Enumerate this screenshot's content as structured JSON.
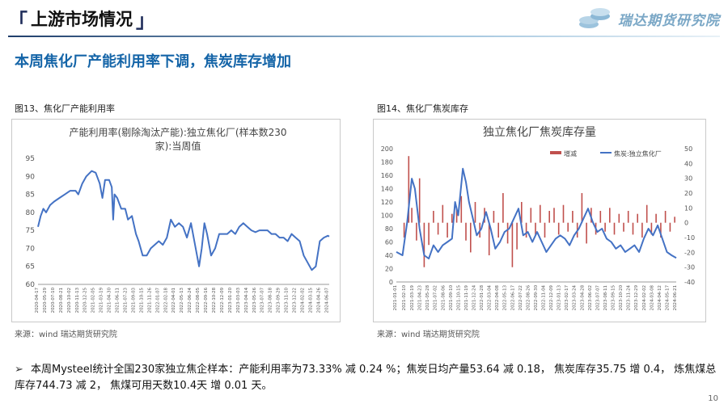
{
  "header": {
    "section_title": "上游市场情况",
    "logo_text": "瑞达期货研究院",
    "subtitle": "本周焦化厂产能利用率下调，焦炭库存增加"
  },
  "figures": [
    {
      "caption": "图13、焦化厂产能利用率",
      "source": "来源：wind   瑞达期货研究院"
    },
    {
      "caption": "图14、焦化厂焦炭库存",
      "source": "来源：wind   瑞达期货研究院"
    }
  ],
  "chart_data": [
    {
      "type": "line",
      "title": "产能利用率(剔除淘汰产能):独立焦化厂(样本数230家):当周值",
      "title_lines": [
        "产能利用率(剔除淘汰产能):独立焦化厂(样本数230",
        "家):当周值"
      ],
      "ylim": [
        60,
        95
      ],
      "yticks": [
        60,
        65,
        70,
        75,
        80,
        85,
        90,
        95
      ],
      "x_labels": [
        "2020-04-17",
        "2020-05-29",
        "2020-07-10",
        "2020-08-21",
        "2020-10-02",
        "2020-11-13",
        "2020-12-25",
        "2021-02-05",
        "2021-03-19",
        "2021-04-30",
        "2021-06-11",
        "2021-07-23",
        "2021-09-03",
        "2021-10-15",
        "2021-11-26",
        "2022-01-07",
        "2022-02-18",
        "2022-04-01",
        "2022-05-13",
        "2022-06-24",
        "2022-08-05",
        "2022-09-16",
        "2022-10-28",
        "2022-12-09",
        "2023-01-20",
        "2023-03-03",
        "2023-04-14",
        "2023-05-26",
        "2023-07-07",
        "2023-08-18",
        "2023-09-29",
        "2023-11-10",
        "2023-12-22",
        "2024-02-02",
        "2024-03-15",
        "2024-04-26",
        "2024-06-07"
      ],
      "x_start": "2020-04-17",
      "x_end": "2024-06-14",
      "series": [
        {
          "name": "",
          "color": "#4472c4",
          "points": [
            [
              "2020-04-17",
              76
            ],
            [
              "2020-05-01",
              79
            ],
            [
              "2020-05-15",
              81
            ],
            [
              "2020-05-29",
              80
            ],
            [
              "2020-06-19",
              82
            ],
            [
              "2020-07-10",
              83
            ],
            [
              "2020-08-07",
              84
            ],
            [
              "2020-09-04",
              85
            ],
            [
              "2020-10-02",
              86
            ],
            [
              "2020-10-30",
              86
            ],
            [
              "2020-11-13",
              85
            ],
            [
              "2020-12-04",
              88
            ],
            [
              "2020-12-25",
              90
            ],
            [
              "2021-01-22",
              91.5
            ],
            [
              "2021-02-12",
              91
            ],
            [
              "2021-03-05",
              88
            ],
            [
              "2021-03-19",
              84
            ],
            [
              "2021-04-02",
              89
            ],
            [
              "2021-04-23",
              89
            ],
            [
              "2021-05-07",
              87
            ],
            [
              "2021-05-14",
              78
            ],
            [
              "2021-05-21",
              85
            ],
            [
              "2021-06-04",
              84
            ],
            [
              "2021-06-25",
              81
            ],
            [
              "2021-07-16",
              81
            ],
            [
              "2021-07-30",
              78
            ],
            [
              "2021-08-20",
              79
            ],
            [
              "2021-09-10",
              74
            ],
            [
              "2021-09-24",
              72
            ],
            [
              "2021-10-15",
              68
            ],
            [
              "2021-11-05",
              68
            ],
            [
              "2021-11-26",
              70
            ],
            [
              "2021-12-17",
              71
            ],
            [
              "2022-01-07",
              72
            ],
            [
              "2022-01-28",
              71
            ],
            [
              "2022-02-18",
              73
            ],
            [
              "2022-03-11",
              78
            ],
            [
              "2022-04-01",
              76
            ],
            [
              "2022-04-22",
              77
            ],
            [
              "2022-05-13",
              76
            ],
            [
              "2022-06-03",
              73
            ],
            [
              "2022-06-24",
              77
            ],
            [
              "2022-07-15",
              71
            ],
            [
              "2022-08-05",
              65
            ],
            [
              "2022-08-19",
              70
            ],
            [
              "2022-09-02",
              77
            ],
            [
              "2022-09-16",
              74
            ],
            [
              "2022-10-07",
              68
            ],
            [
              "2022-10-28",
              70
            ],
            [
              "2022-11-18",
              74
            ],
            [
              "2022-12-09",
              74
            ],
            [
              "2022-12-30",
              74
            ],
            [
              "2023-01-20",
              75
            ],
            [
              "2023-02-10",
              74
            ],
            [
              "2023-03-03",
              76
            ],
            [
              "2023-03-24",
              77
            ],
            [
              "2023-04-14",
              76
            ],
            [
              "2023-05-05",
              75
            ],
            [
              "2023-05-26",
              74.5
            ],
            [
              "2023-06-16",
              75
            ],
            [
              "2023-07-07",
              75
            ],
            [
              "2023-07-28",
              75
            ],
            [
              "2023-08-18",
              74
            ],
            [
              "2023-09-08",
              74
            ],
            [
              "2023-09-29",
              73
            ],
            [
              "2023-10-20",
              73
            ],
            [
              "2023-11-10",
              72
            ],
            [
              "2023-12-01",
              74
            ],
            [
              "2023-12-22",
              73
            ],
            [
              "2024-01-12",
              72
            ],
            [
              "2024-02-02",
              68
            ],
            [
              "2024-02-23",
              66
            ],
            [
              "2024-03-15",
              64
            ],
            [
              "2024-04-05",
              65
            ],
            [
              "2024-04-26",
              72
            ],
            [
              "2024-05-17",
              73
            ],
            [
              "2024-06-07",
              73.5
            ],
            [
              "2024-06-14",
              73.3
            ]
          ]
        }
      ]
    },
    {
      "type": "bar+line",
      "title": "独立焦化厂焦炭库存量",
      "left_ylim": [
        0,
        200
      ],
      "left_yticks": [
        0,
        20,
        40,
        60,
        80,
        100,
        120,
        140,
        160,
        180,
        200
      ],
      "right_ylim": [
        -40,
        50
      ],
      "right_yticks": [
        -40,
        -30,
        -20,
        -10,
        0,
        10,
        20,
        30,
        40,
        50
      ],
      "x_labels": [
        "2021-01-01",
        "2021-02-10",
        "2021-03-19",
        "2021-04-23",
        "2021-05-28",
        "2021-07-02",
        "2021-08-06",
        "2021-09-10",
        "2021-10-15",
        "2021-11-19",
        "2021-12-24",
        "2022-01-28",
        "2022-03-04",
        "2022-04-08",
        "2022-05-13",
        "2022-06-17",
        "2022-07-22",
        "2022-08-26",
        "2022-09-30",
        "2022-11-04",
        "2022-12-09",
        "2023-01-13",
        "2023-02-17",
        "2023-03-24",
        "2023-04-28",
        "2023-06-02",
        "2023-07-07",
        "2023-08-11",
        "2023-09-15",
        "2023-10-20",
        "2023-11-24",
        "2023-12-29",
        "2024-02-02",
        "2024-03-08",
        "2024-04-12",
        "2024-05-17",
        "2024-06-21"
      ],
      "x_start": "2021-01-01",
      "x_end": "2024-06-21",
      "legend": [
        "增减",
        "焦炭:独立焦化厂"
      ],
      "legend_position": "top-right",
      "bars": {
        "name": "增减",
        "color": "#c0504d",
        "points": [
          [
            "2021-02-05",
            -10
          ],
          [
            "2021-02-26",
            45
          ],
          [
            "2021-03-12",
            10
          ],
          [
            "2021-04-02",
            -12
          ],
          [
            "2021-04-16",
            30
          ],
          [
            "2021-05-07",
            -30
          ],
          [
            "2021-05-28",
            -15
          ],
          [
            "2021-06-18",
            8
          ],
          [
            "2021-07-09",
            -8
          ],
          [
            "2021-07-30",
            12
          ],
          [
            "2021-08-20",
            -10
          ],
          [
            "2021-09-10",
            6
          ],
          [
            "2021-10-01",
            10
          ],
          [
            "2021-10-22",
            18
          ],
          [
            "2021-11-12",
            -12
          ],
          [
            "2021-12-03",
            -20
          ],
          [
            "2021-12-24",
            14
          ],
          [
            "2022-01-14",
            -10
          ],
          [
            "2022-02-04",
            10
          ],
          [
            "2022-02-25",
            -22
          ],
          [
            "2022-03-18",
            8
          ],
          [
            "2022-04-08",
            -10
          ],
          [
            "2022-04-29",
            20
          ],
          [
            "2022-05-20",
            -14
          ],
          [
            "2022-06-10",
            -30
          ],
          [
            "2022-07-01",
            -18
          ],
          [
            "2022-07-22",
            14
          ],
          [
            "2022-08-12",
            -10
          ],
          [
            "2022-09-02",
            10
          ],
          [
            "2022-09-23",
            -8
          ],
          [
            "2022-10-14",
            12
          ],
          [
            "2022-11-04",
            -10
          ],
          [
            "2022-11-25",
            8
          ],
          [
            "2022-12-16",
            10
          ],
          [
            "2023-01-06",
            -8
          ],
          [
            "2023-01-27",
            12
          ],
          [
            "2023-02-17",
            -6
          ],
          [
            "2023-03-10",
            8
          ],
          [
            "2023-03-31",
            -10
          ],
          [
            "2023-04-21",
            20
          ],
          [
            "2023-05-12",
            -14
          ],
          [
            "2023-06-02",
            10
          ],
          [
            "2023-06-23",
            -8
          ],
          [
            "2023-07-14",
            8
          ],
          [
            "2023-08-04",
            -6
          ],
          [
            "2023-08-25",
            10
          ],
          [
            "2023-09-15",
            -8
          ],
          [
            "2023-10-06",
            6
          ],
          [
            "2023-10-27",
            -6
          ],
          [
            "2023-11-17",
            8
          ],
          [
            "2023-12-08",
            -8
          ],
          [
            "2023-12-29",
            6
          ],
          [
            "2024-01-19",
            -10
          ],
          [
            "2024-02-09",
            12
          ],
          [
            "2024-03-01",
            -8
          ],
          [
            "2024-03-22",
            6
          ],
          [
            "2024-04-12",
            -10
          ],
          [
            "2024-05-03",
            8
          ],
          [
            "2024-05-24",
            -6
          ],
          [
            "2024-06-14",
            4
          ]
        ]
      },
      "line": {
        "name": "焦炭:独立焦化厂",
        "color": "#4472c4",
        "points": [
          [
            "2021-01-01",
            45
          ],
          [
            "2021-01-29",
            40
          ],
          [
            "2021-02-19",
            90
          ],
          [
            "2021-03-12",
            155
          ],
          [
            "2021-03-26",
            140
          ],
          [
            "2021-04-16",
            80
          ],
          [
            "2021-05-07",
            40
          ],
          [
            "2021-05-28",
            35
          ],
          [
            "2021-06-18",
            55
          ],
          [
            "2021-07-09",
            45
          ],
          [
            "2021-07-30",
            55
          ],
          [
            "2021-08-20",
            60
          ],
          [
            "2021-09-10",
            65
          ],
          [
            "2021-09-24",
            120
          ],
          [
            "2021-10-08",
            100
          ],
          [
            "2021-10-29",
            170
          ],
          [
            "2021-11-12",
            150
          ],
          [
            "2021-11-26",
            120
          ],
          [
            "2021-12-10",
            100
          ],
          [
            "2021-12-31",
            70
          ],
          [
            "2022-01-21",
            80
          ],
          [
            "2022-02-11",
            105
          ],
          [
            "2022-03-04",
            80
          ],
          [
            "2022-03-25",
            50
          ],
          [
            "2022-04-15",
            60
          ],
          [
            "2022-05-06",
            75
          ],
          [
            "2022-05-27",
            80
          ],
          [
            "2022-06-17",
            95
          ],
          [
            "2022-07-08",
            110
          ],
          [
            "2022-07-29",
            70
          ],
          [
            "2022-08-19",
            75
          ],
          [
            "2022-09-09",
            60
          ],
          [
            "2022-09-30",
            75
          ],
          [
            "2022-10-21",
            60
          ],
          [
            "2022-11-11",
            45
          ],
          [
            "2022-12-02",
            55
          ],
          [
            "2022-12-23",
            65
          ],
          [
            "2023-01-13",
            70
          ],
          [
            "2023-02-03",
            65
          ],
          [
            "2023-02-24",
            55
          ],
          [
            "2023-03-17",
            70
          ],
          [
            "2023-04-07",
            80
          ],
          [
            "2023-04-28",
            95
          ],
          [
            "2023-05-19",
            110
          ],
          [
            "2023-06-09",
            90
          ],
          [
            "2023-06-30",
            75
          ],
          [
            "2023-07-21",
            80
          ],
          [
            "2023-08-11",
            65
          ],
          [
            "2023-09-01",
            60
          ],
          [
            "2023-09-22",
            50
          ],
          [
            "2023-10-13",
            55
          ],
          [
            "2023-11-03",
            45
          ],
          [
            "2023-11-24",
            50
          ],
          [
            "2023-12-15",
            55
          ],
          [
            "2024-01-05",
            45
          ],
          [
            "2024-01-26",
            65
          ],
          [
            "2024-02-16",
            80
          ],
          [
            "2024-03-08",
            70
          ],
          [
            "2024-03-29",
            85
          ],
          [
            "2024-04-19",
            65
          ],
          [
            "2024-05-10",
            45
          ],
          [
            "2024-05-31",
            40
          ],
          [
            "2024-06-21",
            36
          ]
        ]
      }
    }
  ],
  "bullets": [
    "本周Mysteel统计全国230家独立焦企样本：产能利用率为73.33% 减 0.24 %；焦炭日均产量53.64 减 0.18， 焦炭库存35.75 增 0.4， 炼焦煤总库存744.73 减 2， 焦煤可用天数10.4天 增 0.01 天。"
  ],
  "bullet_marker": "➢",
  "page_number": "10"
}
